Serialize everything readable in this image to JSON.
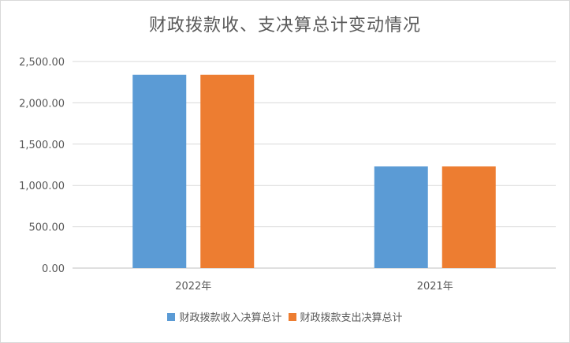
{
  "chart_data": {
    "type": "bar",
    "title": "财政拨款收、支决算总计变动情况",
    "categories": [
      "2022年",
      "2021年"
    ],
    "series": [
      {
        "name": "财政拨款收入决算总计",
        "values": [
          2340,
          1230
        ],
        "color": "#5b9bd5"
      },
      {
        "name": "财政拨款支出决算总计",
        "values": [
          2340,
          1230
        ],
        "color": "#ed7d31"
      }
    ],
    "y_ticks": [
      "0.00",
      "500.00",
      "1,000.00",
      "1,500.00",
      "2,000.00",
      "2,500.00"
    ],
    "ylim": [
      0,
      2500
    ],
    "grid": true,
    "legend_position": "bottom",
    "xlabel": "",
    "ylabel": ""
  }
}
